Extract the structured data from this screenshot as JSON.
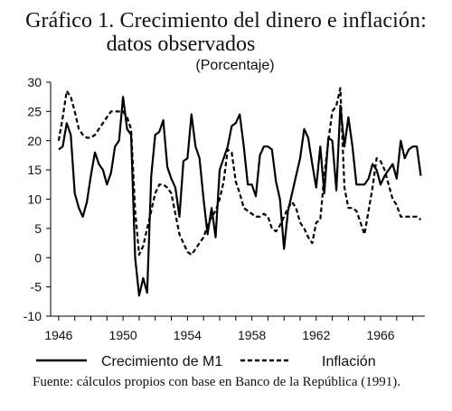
{
  "chart_data": {
    "type": "line",
    "title_line1": "Gráfico 1. Crecimiento del dinero e inflación:",
    "title_line2": "datos observados",
    "subtitle": "(Porcentaje)",
    "source": "Fuente: cálculos propios con base en Banco de la República (1991).",
    "ylim": [
      -10,
      30
    ],
    "y_ticks": [
      "30",
      "25",
      "20",
      "15",
      "10",
      "5",
      "0",
      "-5",
      "-10"
    ],
    "x_ticks": [
      "1946",
      "1950",
      "1954",
      "1958",
      "1962",
      "1966"
    ],
    "xlim": [
      1945.5,
      1968.75
    ],
    "legend_position": "bottom",
    "grid": false,
    "series": [
      {
        "name": "Crecimiento de M1",
        "style": "solid",
        "color": "#000000",
        "x": [
          1946.0,
          1946.25,
          1946.5,
          1946.75,
          1947.0,
          1947.25,
          1947.5,
          1947.75,
          1948.0,
          1948.25,
          1948.5,
          1948.75,
          1949.0,
          1949.25,
          1949.5,
          1949.75,
          1950.0,
          1950.25,
          1950.5,
          1950.75,
          1951.0,
          1951.25,
          1951.5,
          1951.75,
          1952.0,
          1952.25,
          1952.5,
          1952.75,
          1953.0,
          1953.25,
          1953.5,
          1953.75,
          1954.0,
          1954.25,
          1954.5,
          1954.75,
          1955.0,
          1955.25,
          1955.5,
          1955.75,
          1956.0,
          1956.25,
          1956.5,
          1956.75,
          1957.0,
          1957.25,
          1957.5,
          1957.75,
          1958.0,
          1958.25,
          1958.5,
          1958.75,
          1959.0,
          1959.25,
          1959.5,
          1959.75,
          1960.0,
          1960.25,
          1960.5,
          1960.75,
          1961.0,
          1961.25,
          1961.5,
          1961.75,
          1962.0,
          1962.25,
          1962.5,
          1962.75,
          1963.0,
          1963.25,
          1963.5,
          1963.75,
          1964.0,
          1964.25,
          1964.5,
          1964.75,
          1965.0,
          1965.25,
          1965.5,
          1965.75,
          1966.0,
          1966.25,
          1966.5,
          1966.75,
          1967.0,
          1967.25,
          1967.5,
          1967.75,
          1968.0,
          1968.25,
          1968.5
        ],
        "values": [
          18.5,
          19,
          23,
          21,
          11,
          8.5,
          7,
          9.5,
          14,
          18,
          16,
          15,
          12.5,
          14.5,
          19,
          20,
          27.5,
          22,
          21,
          0,
          -6.5,
          -3.5,
          -6,
          14,
          21,
          21.5,
          23.5,
          15.5,
          13.5,
          12,
          7,
          16.5,
          17,
          24.5,
          19,
          17,
          10,
          4,
          8.5,
          3.5,
          15,
          17,
          19,
          22.5,
          23,
          24.5,
          19,
          12.5,
          12.5,
          10.5,
          17.5,
          19,
          19,
          18.5,
          13,
          10,
          1.5,
          8,
          11,
          14,
          17,
          22,
          20.5,
          16,
          12,
          19,
          11,
          20.5,
          20,
          11.5,
          26,
          19,
          24,
          19,
          12.5,
          12.5,
          12.5,
          13.5,
          16,
          15,
          12.5,
          14,
          15,
          16,
          13.5,
          20,
          17,
          18.5,
          19,
          19,
          14
        ]
      },
      {
        "name": "Inflación",
        "style": "dashed",
        "color": "#000000",
        "x": [
          1946.0,
          1946.25,
          1946.5,
          1946.75,
          1947.0,
          1947.25,
          1947.5,
          1947.75,
          1948.0,
          1948.25,
          1948.5,
          1948.75,
          1949.0,
          1949.25,
          1949.5,
          1949.75,
          1950.0,
          1950.25,
          1950.5,
          1950.75,
          1951.0,
          1951.25,
          1951.5,
          1951.75,
          1952.0,
          1952.25,
          1952.5,
          1952.75,
          1953.0,
          1953.25,
          1953.5,
          1953.75,
          1954.0,
          1954.25,
          1954.5,
          1954.75,
          1955.0,
          1955.25,
          1955.5,
          1955.75,
          1956.0,
          1956.25,
          1956.5,
          1956.75,
          1957.0,
          1957.25,
          1957.5,
          1957.75,
          1958.0,
          1958.25,
          1958.5,
          1958.75,
          1959.0,
          1959.25,
          1959.5,
          1959.75,
          1960.0,
          1960.25,
          1960.5,
          1960.75,
          1961.0,
          1961.25,
          1961.5,
          1961.75,
          1962.0,
          1962.25,
          1962.5,
          1962.75,
          1963.0,
          1963.25,
          1963.5,
          1963.75,
          1964.0,
          1964.25,
          1964.5,
          1964.75,
          1965.0,
          1965.25,
          1965.5,
          1965.75,
          1966.0,
          1966.25,
          1966.5,
          1966.75,
          1967.0,
          1967.25,
          1967.5,
          1967.75,
          1968.0,
          1968.25,
          1968.5
        ],
        "values": [
          20,
          24,
          28.5,
          27.5,
          25,
          22,
          21,
          20.5,
          20.5,
          21,
          22,
          23,
          24,
          25,
          25,
          25,
          25,
          24,
          22,
          8,
          0.5,
          2,
          5,
          8,
          11,
          12.5,
          12.5,
          12,
          11,
          7.5,
          4,
          2.5,
          1,
          0.5,
          1.5,
          2.5,
          3.5,
          5.5,
          7,
          8,
          10,
          13,
          18.5,
          18,
          13,
          11,
          8.5,
          8,
          7.5,
          7,
          7,
          7.5,
          7,
          5,
          4.5,
          5.5,
          7,
          8.5,
          9.5,
          8.5,
          6,
          5,
          3.5,
          2.5,
          6,
          6.5,
          14,
          20,
          25,
          26,
          29,
          12,
          8.5,
          8.5,
          8,
          6,
          4,
          8,
          12,
          17,
          16.5,
          15,
          12.5,
          10,
          9,
          7,
          7,
          7,
          7,
          7,
          6.5
        ]
      }
    ]
  }
}
